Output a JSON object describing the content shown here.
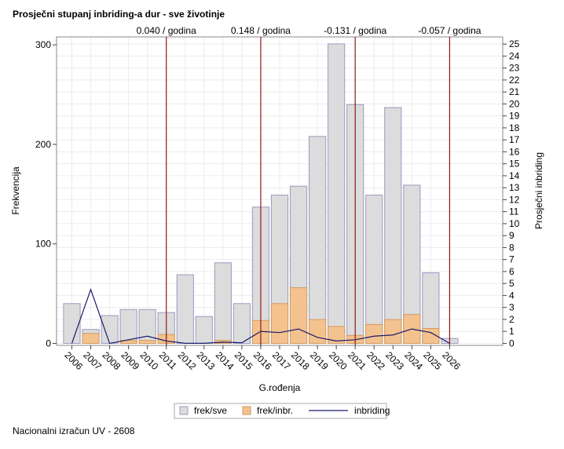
{
  "chart_data": {
    "type": "bar-line",
    "title": "Prosječni stupanj inbriding-a dur - sve životinje",
    "footer": "Nacionalni izračun UV - 2608",
    "x_label": "G.rođenja",
    "y_label": "Frekvencija",
    "y2_label": "Prosječni inbriding",
    "x": [
      2006,
      2007,
      2008,
      2009,
      2010,
      2011,
      2012,
      2013,
      2014,
      2015,
      2016,
      2017,
      2018,
      2019,
      2020,
      2021,
      2022,
      2023,
      2024,
      2025,
      2026
    ],
    "xlim": [
      2005.19,
      2028.81
    ],
    "xticks": [
      2006,
      2007,
      2008,
      2009,
      2010,
      2011,
      2012,
      2013,
      2014,
      2015,
      2016,
      2017,
      2018,
      2019,
      2020,
      2021,
      2022,
      2023,
      2024,
      2025,
      2026
    ],
    "ylim": [
      -2,
      308
    ],
    "yticks": [
      0,
      100,
      200,
      300
    ],
    "y2lim": [
      -0.17,
      25.6
    ],
    "y2ticks": [
      0,
      1,
      2,
      3,
      4,
      5,
      6,
      7,
      8,
      9,
      10,
      11,
      12,
      13,
      14,
      15,
      16,
      17,
      18,
      19,
      20,
      21,
      22,
      23,
      24,
      25
    ],
    "grid": true,
    "series": [
      {
        "name": "frek/sve",
        "kind": "bar",
        "color": "#dcdcdc",
        "values": [
          40,
          14,
          28,
          34,
          34,
          31,
          69,
          27,
          81,
          40,
          137,
          149,
          158,
          208,
          301,
          240,
          149,
          237,
          159,
          71,
          5
        ]
      },
      {
        "name": "frek/inbr.",
        "kind": "bar",
        "color": "#f3c28e",
        "values": [
          0,
          10,
          0,
          3,
          3,
          9,
          0,
          0,
          3,
          0,
          23,
          40,
          56,
          24,
          17,
          8,
          19,
          24,
          29,
          15,
          0
        ]
      },
      {
        "name": "inbriding",
        "kind": "line",
        "axis": "y2",
        "color": "#1a1a6e",
        "values": [
          0,
          4.5,
          0,
          0.3,
          0.6,
          0.2,
          0,
          0,
          0.1,
          0.05,
          1.0,
          0.9,
          1.2,
          0.5,
          0.2,
          0.3,
          0.6,
          0.7,
          1.2,
          0.9,
          0
        ]
      }
    ],
    "reference_lines": [
      {
        "x": 2011,
        "label": "0.040 / godina"
      },
      {
        "x": 2016,
        "label": "0.148 / godina"
      },
      {
        "x": 2021,
        "label": "-0.131 / godina"
      },
      {
        "x": 2026,
        "label": "-0.057 / godina"
      }
    ],
    "reference_color": "#8b1a1a"
  }
}
